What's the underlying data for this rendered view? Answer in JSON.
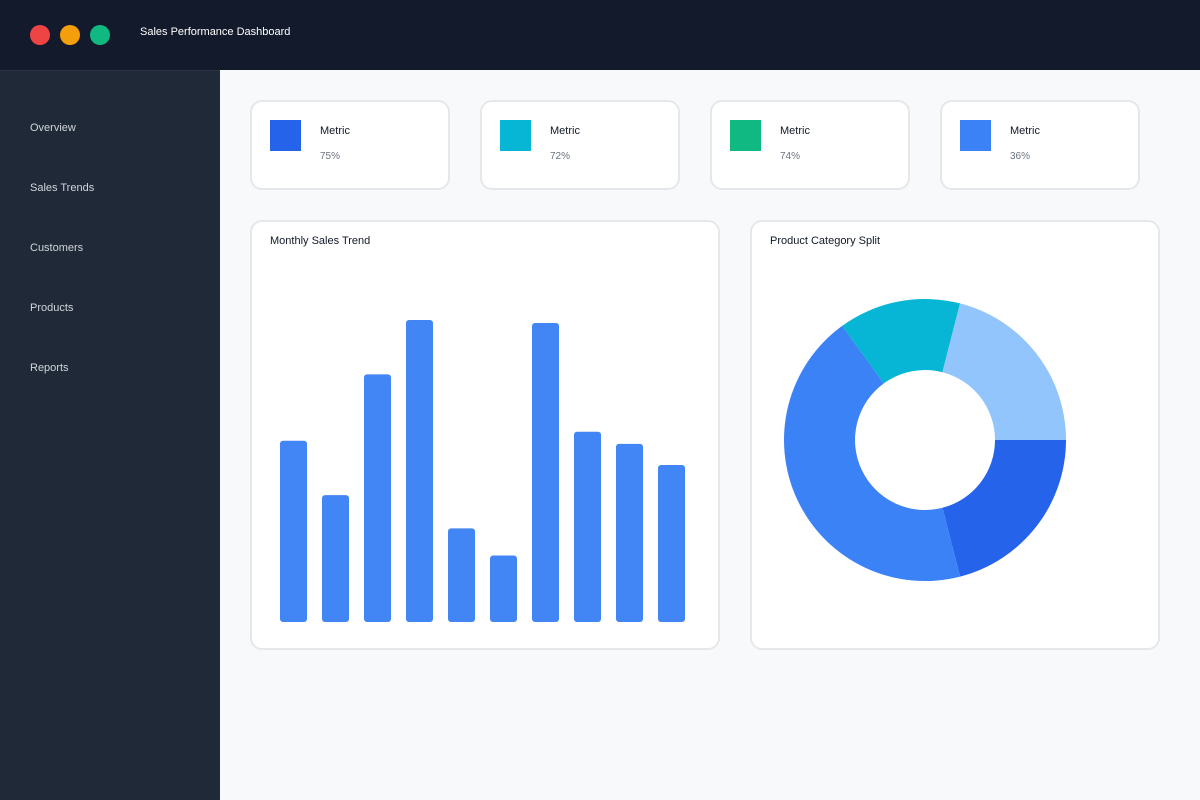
{
  "window": {
    "title": "Sales Performance Dashboard",
    "controls": [
      {
        "name": "close",
        "color": "#ef4444"
      },
      {
        "name": "minimize",
        "color": "#f59e0b"
      },
      {
        "name": "maximize",
        "color": "#10b981"
      }
    ]
  },
  "sidebar": {
    "items": [
      {
        "label": "Overview"
      },
      {
        "label": "Sales Trends"
      },
      {
        "label": "Customers"
      },
      {
        "label": "Products"
      },
      {
        "label": "Reports"
      }
    ]
  },
  "metrics": [
    {
      "label": "Metric",
      "value": "75%",
      "color": "#2563eb"
    },
    {
      "label": "Metric",
      "value": "72%",
      "color": "#06b6d4"
    },
    {
      "label": "Metric",
      "value": "74%",
      "color": "#10b981"
    },
    {
      "label": "Metric",
      "value": "36%",
      "color": "#3b82f6"
    }
  ],
  "charts": {
    "monthly_title": "Monthly Sales Trend",
    "category_title": "Product Category Split"
  },
  "chart_data": [
    {
      "type": "bar",
      "title": "Monthly Sales Trend",
      "values": [
        60,
        42,
        82,
        100,
        31,
        22,
        99,
        63,
        59,
        52
      ],
      "ylim": [
        0,
        100
      ],
      "color": "#4285f4",
      "grid": false
    },
    {
      "type": "pie",
      "style": "donut",
      "title": "Product Category Split",
      "values": [
        21,
        44,
        14,
        21
      ],
      "colors": [
        "#2563eb",
        "#3b82f6",
        "#06b6d4",
        "#93c5fd"
      ]
    }
  ]
}
